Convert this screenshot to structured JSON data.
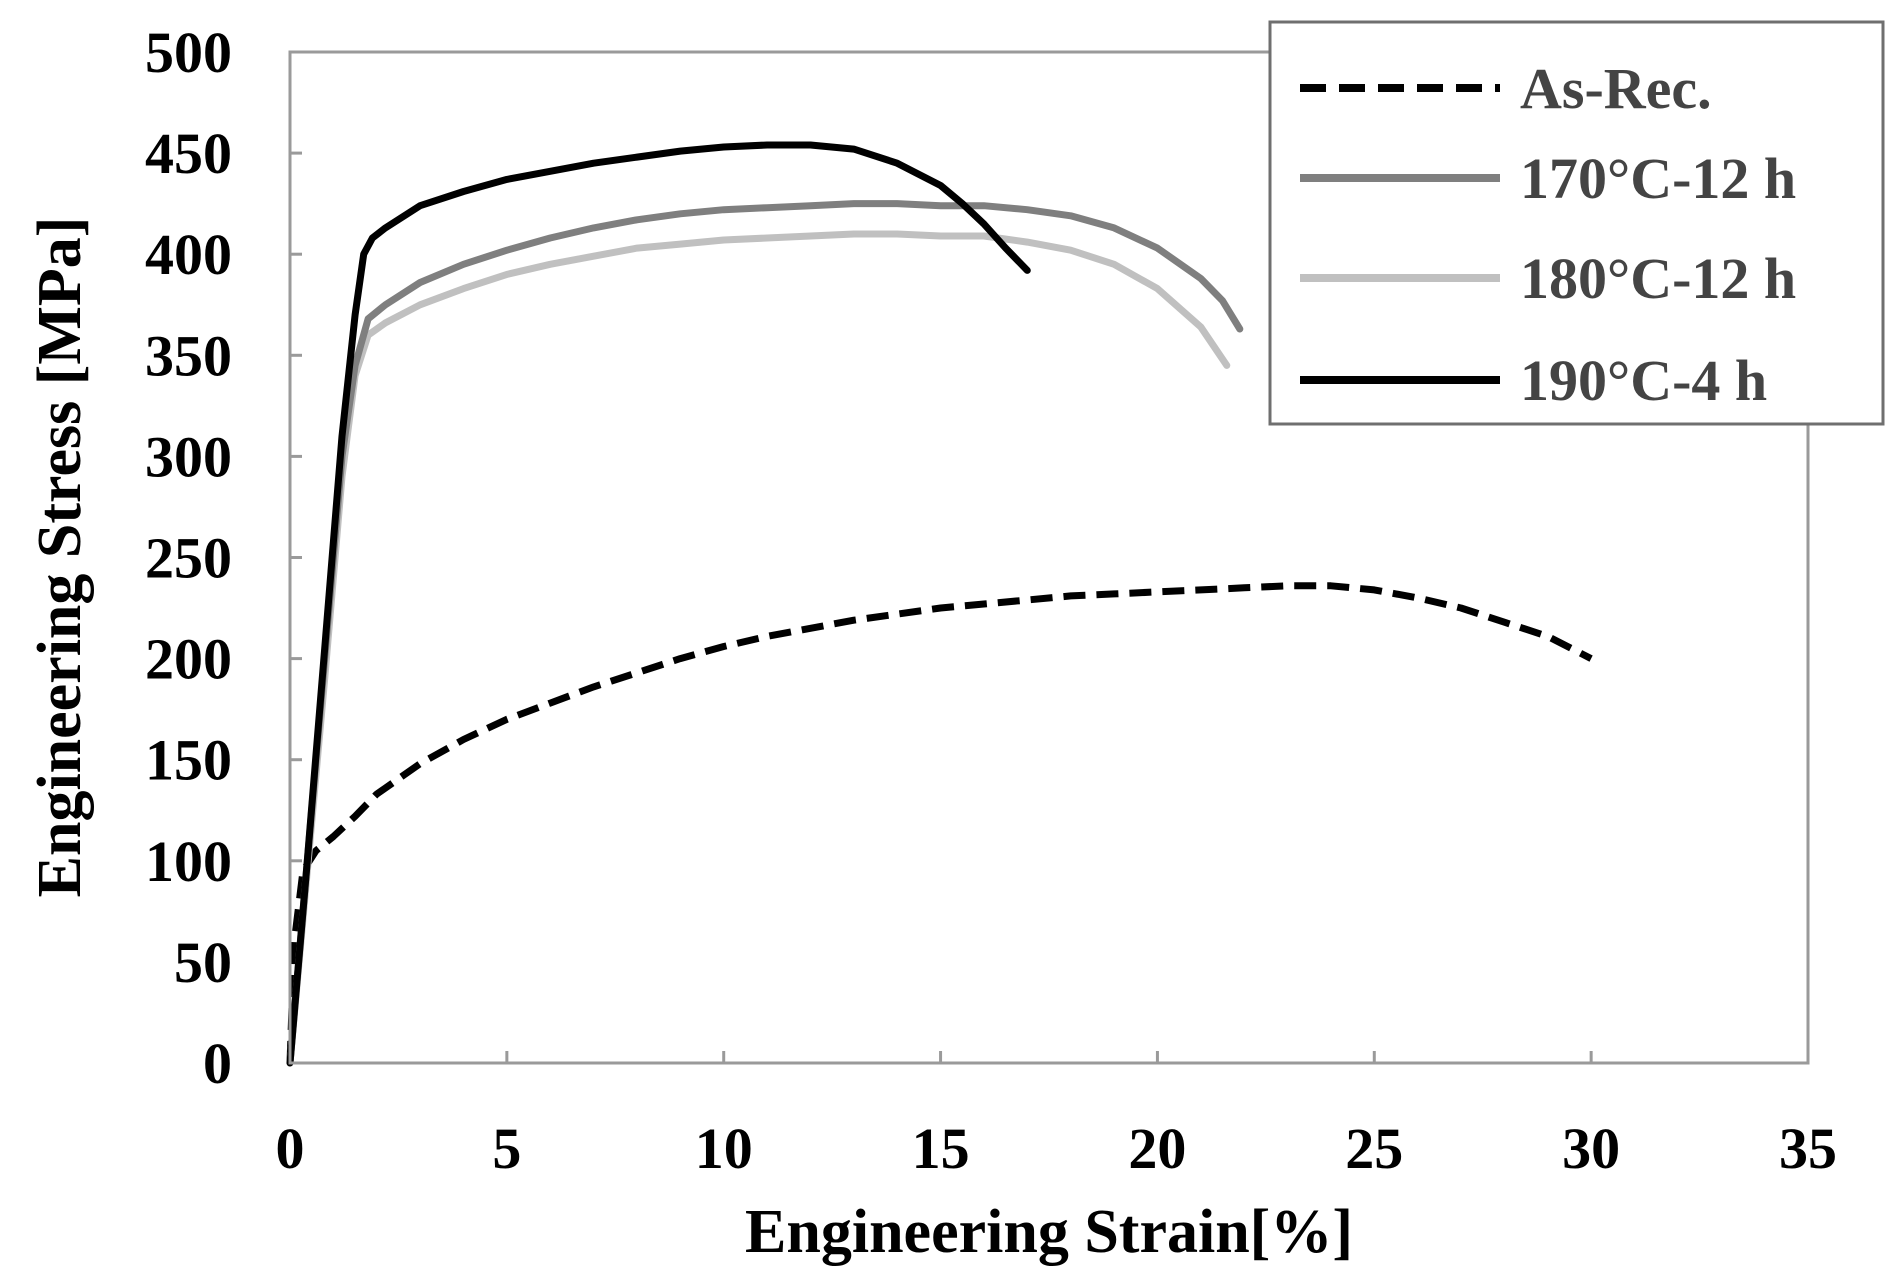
{
  "chart_data": {
    "type": "line",
    "title": "",
    "xlabel": "Engineering Strain[%]",
    "ylabel": "Engineering Stress [MPa]",
    "xlim": [
      0,
      35
    ],
    "ylim": [
      0,
      500
    ],
    "xticks": [
      0,
      5,
      10,
      15,
      20,
      25,
      30,
      35
    ],
    "yticks": [
      0,
      50,
      100,
      150,
      200,
      250,
      300,
      350,
      400,
      450,
      500
    ],
    "grid": false,
    "legend_position": "top-right",
    "series": [
      {
        "name": "As-Rec.",
        "color": "#000000",
        "style": "dashed",
        "x": [
          0,
          0.1,
          0.3,
          0.6,
          1.0,
          1.5,
          2,
          3,
          4,
          5,
          6,
          7,
          8,
          9,
          10,
          11,
          12,
          13,
          14,
          15,
          16,
          17,
          18,
          19,
          20,
          21,
          22,
          23,
          24,
          25,
          26,
          27,
          28,
          29,
          30
        ],
        "y": [
          0,
          60,
          95,
          105,
          112,
          122,
          133,
          148,
          160,
          170,
          178,
          186,
          193,
          200,
          206,
          211,
          215,
          219,
          222,
          225,
          227,
          229,
          231,
          232,
          233,
          234,
          235,
          236,
          236,
          234,
          230,
          225,
          218,
          211,
          200
        ]
      },
      {
        "name": "170°C-12 h",
        "color": "#7f7f7f",
        "style": "solid",
        "x": [
          0,
          0.4,
          0.8,
          1.2,
          1.5,
          1.8,
          2.2,
          3,
          4,
          5,
          6,
          7,
          8,
          9,
          10,
          11,
          12,
          13,
          14,
          15,
          16,
          17,
          18,
          19,
          20,
          21,
          21.5,
          21.9
        ],
        "y": [
          0,
          100,
          200,
          300,
          345,
          368,
          375,
          386,
          395,
          402,
          408,
          413,
          417,
          420,
          422,
          423,
          424,
          425,
          425,
          424,
          424,
          422,
          419,
          413,
          403,
          388,
          377,
          363
        ]
      },
      {
        "name": "180°C-12 h",
        "color": "#c0c0c0",
        "style": "solid",
        "x": [
          0,
          0.4,
          0.8,
          1.2,
          1.5,
          1.8,
          2.2,
          3,
          4,
          5,
          6,
          7,
          8,
          9,
          10,
          11,
          12,
          13,
          14,
          15,
          16,
          17,
          18,
          19,
          20,
          21,
          21.6
        ],
        "y": [
          0,
          95,
          190,
          290,
          340,
          360,
          366,
          375,
          383,
          390,
          395,
          399,
          403,
          405,
          407,
          408,
          409,
          410,
          410,
          409,
          409,
          406,
          402,
          395,
          383,
          364,
          345
        ]
      },
      {
        "name": "190°C-4 h",
        "color": "#000000",
        "style": "solid",
        "x": [
          0,
          0.4,
          0.8,
          1.2,
          1.5,
          1.7,
          1.9,
          2.2,
          3,
          4,
          5,
          6,
          7,
          8,
          9,
          10,
          11,
          12,
          13,
          14,
          15,
          15.5,
          16,
          16.5,
          17
        ],
        "y": [
          0,
          100,
          205,
          310,
          370,
          400,
          408,
          413,
          424,
          431,
          437,
          441,
          445,
          448,
          451,
          453,
          454,
          454,
          452,
          445,
          434,
          425,
          415,
          403,
          392
        ]
      }
    ]
  }
}
